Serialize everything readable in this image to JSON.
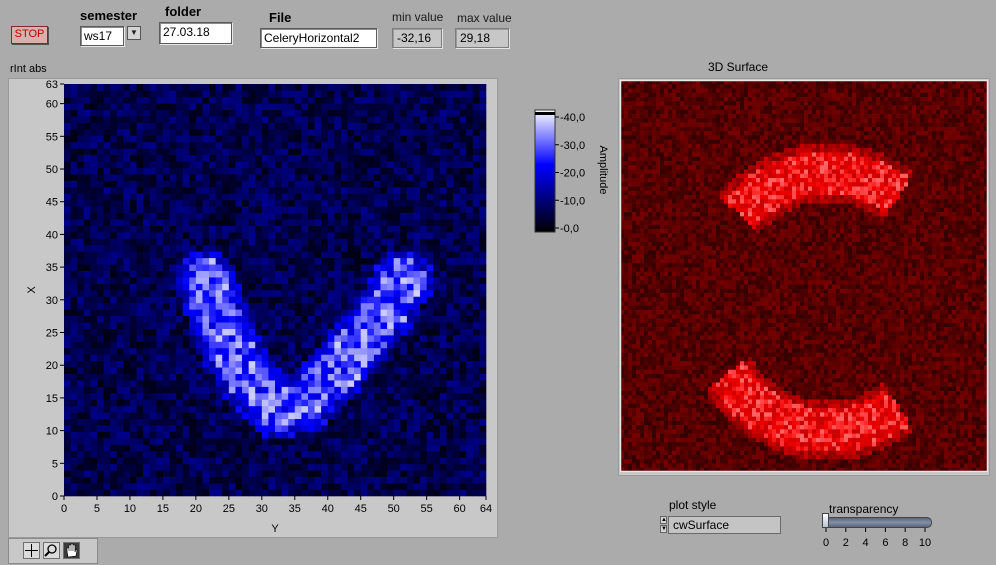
{
  "controls": {
    "stop_label": "STOP",
    "semester_label": "semester",
    "semester_value": "ws17",
    "folder_label": "folder",
    "folder_value": "27.03.18",
    "file_label": "File",
    "file_value": "CeleryHorizontal2",
    "min_label": "min value",
    "min_value": "-32,16",
    "max_label": "max value",
    "max_value": "29,18"
  },
  "intensity_graph": {
    "title": "rInt  abs",
    "xlabel": "Y",
    "ylabel": "X",
    "x_ticks": [
      "0",
      "5",
      "10",
      "15",
      "20",
      "25",
      "30",
      "35",
      "40",
      "45",
      "50",
      "55",
      "60",
      "64"
    ],
    "y_ticks": [
      "0",
      "5",
      "10",
      "15",
      "20",
      "25",
      "30",
      "35",
      "40",
      "45",
      "50",
      "55",
      "60",
      "63"
    ],
    "x_range": [
      0,
      64
    ],
    "y_range": [
      0,
      63
    ],
    "colormap": [
      "#000000",
      "#0000ff",
      "#ffffff"
    ]
  },
  "colorbar": {
    "title": "Amplitude",
    "ticks": [
      "-40,0",
      "-30,0",
      "-20,0",
      "-10,0",
      "-0,0"
    ]
  },
  "surface": {
    "title": "3D Surface",
    "color": "#ff0000"
  },
  "plot_style": {
    "label": "plot style",
    "value": "cwSurface"
  },
  "transparency": {
    "label": "transparency",
    "ticks": [
      "0",
      "2",
      "4",
      "6",
      "8",
      "10"
    ],
    "value": 0
  },
  "tools": [
    "crosshair-icon",
    "zoom-icon",
    "pan-icon"
  ]
}
